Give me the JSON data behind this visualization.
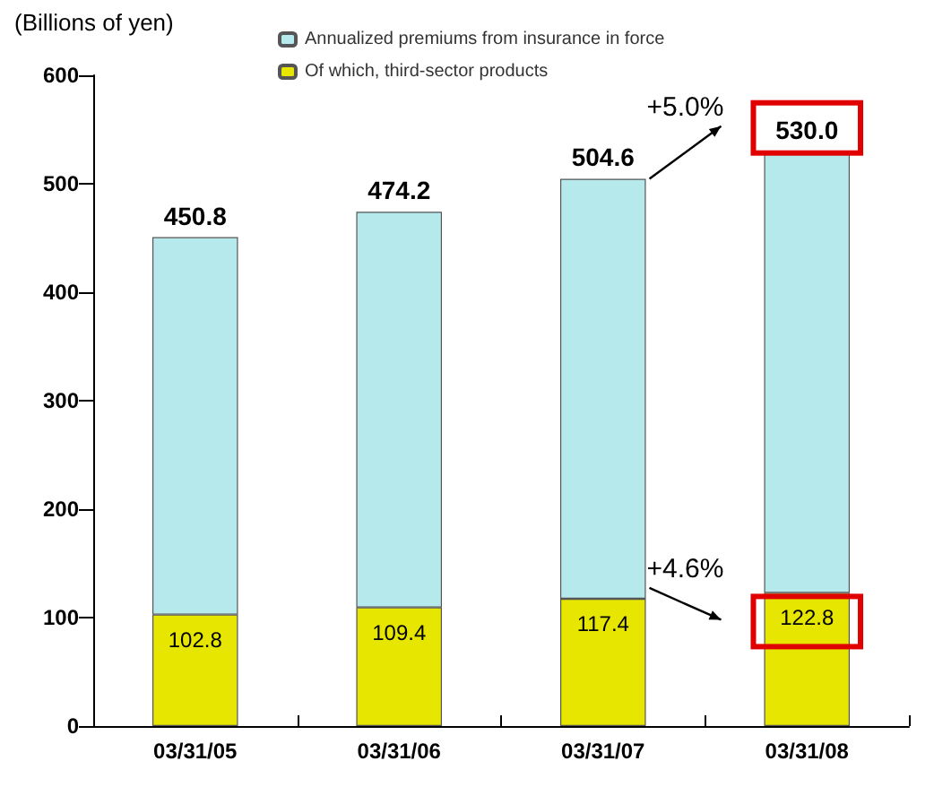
{
  "chart_data": {
    "type": "bar",
    "stacked": true,
    "ylabel": "(Billions of yen)",
    "categories": [
      "03/31/05",
      "03/31/06",
      "03/31/07",
      "03/31/08"
    ],
    "series": [
      {
        "name": "Of which, third-sector products",
        "color": "#e6e600",
        "values": [
          102.8,
          109.4,
          117.4,
          122.8
        ],
        "value_labels": [
          "102.8",
          "109.4",
          "117.4",
          "122.8"
        ]
      },
      {
        "name": "Annualized premiums from insurance in force",
        "color": "#b6e9ec",
        "values": [
          348.0,
          364.8,
          387.2,
          407.2
        ]
      }
    ],
    "totals": [
      "450.8",
      "474.2",
      "504.6",
      "530.0"
    ],
    "annotations": [
      "+5.0%",
      "+4.6%"
    ],
    "ylim": [
      0,
      600
    ],
    "yticks": [
      0,
      100,
      200,
      300,
      400,
      500,
      600
    ],
    "grid": false,
    "legend": "top left"
  }
}
